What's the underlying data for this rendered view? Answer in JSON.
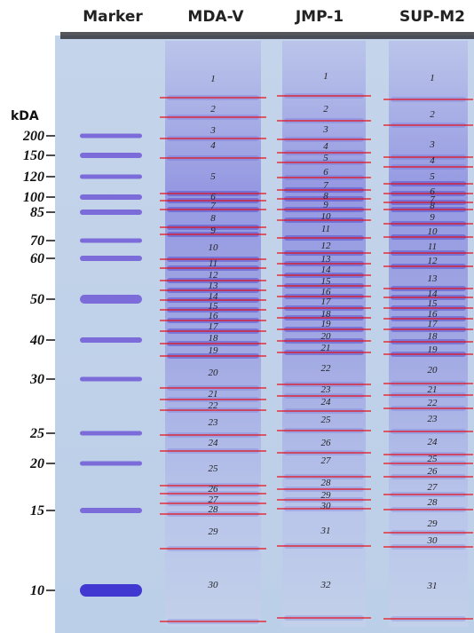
{
  "headers": [
    "Marker",
    "MDA-V",
    "JMP-1",
    "SUP-M2"
  ],
  "unit": "kDA",
  "markers": [
    200,
    150,
    120,
    100,
    85,
    70,
    60,
    50,
    40,
    30,
    25,
    20,
    15,
    10
  ],
  "lanes": [
    {
      "slices": [
        1,
        2,
        3,
        4,
        5,
        6,
        7,
        8,
        9,
        10,
        11,
        12,
        13,
        14,
        15,
        16,
        17,
        18,
        19,
        20,
        21,
        22,
        23,
        24,
        25,
        26,
        27,
        28,
        29,
        30
      ]
    },
    {
      "slices": [
        1,
        2,
        3,
        4,
        5,
        6,
        7,
        8,
        9,
        10,
        11,
        12,
        13,
        14,
        15,
        16,
        17,
        18,
        19,
        20,
        21,
        22,
        23,
        24,
        25,
        26,
        27,
        28,
        29,
        30,
        31,
        32
      ]
    },
    {
      "slices": [
        1,
        2,
        3,
        4,
        5,
        6,
        7,
        8,
        9,
        10,
        11,
        12,
        13,
        14,
        15,
        16,
        17,
        18,
        19,
        20,
        21,
        22,
        23,
        24,
        25,
        26,
        27,
        28,
        29,
        30,
        31
      ]
    }
  ]
}
